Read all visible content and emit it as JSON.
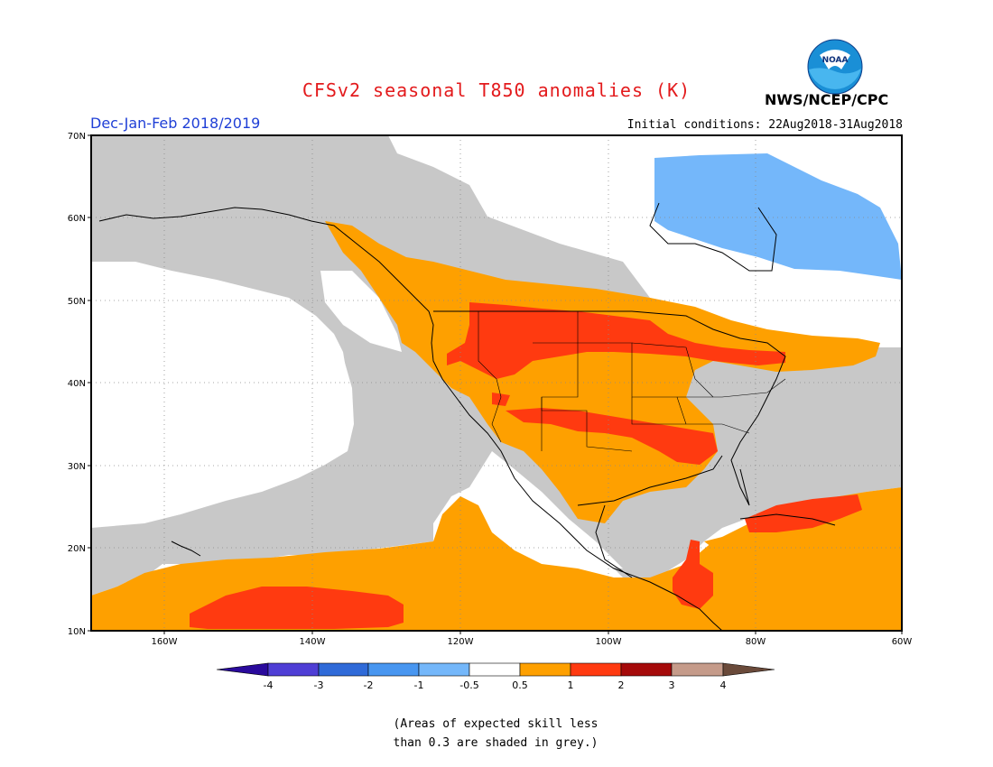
{
  "header": {
    "title": "CFSv2 seasonal T850 anomalies (K)",
    "season": "Dec-Jan-Feb 2018/2019",
    "initial_conditions": "Initial conditions: 22Aug2018-31Aug2018",
    "agency": "NWS/NCEP/CPC",
    "logo_text": "NOAA"
  },
  "map": {
    "lat_labels": [
      "10N",
      "20N",
      "30N",
      "40N",
      "50N",
      "60N",
      "70N"
    ],
    "lon_labels": [
      "160W",
      "140W",
      "120W",
      "100W",
      "80W",
      "60W"
    ],
    "region": "North America",
    "regions": [
      {
        "area": "Eastern Canada / Labrador",
        "category": "-1 to -0.5",
        "color": "#74b7fa"
      },
      {
        "area": "Northern US Plains / Montana",
        "category": "1 to 2",
        "color": "#ff3a10"
      },
      {
        "area": "Southern Plains / Oklahoma-Arkansas",
        "category": "1 to 2",
        "color": "#ff3a10"
      },
      {
        "area": "Central Pacific south of Hawaii",
        "category": "1 to 2",
        "color": "#ff3a10"
      },
      {
        "area": "Cuba / Caribbean",
        "category": "1 to 2",
        "color": "#ff3a10"
      },
      {
        "area": "Guatemala / Honduras",
        "category": "1 to 2",
        "color": "#ff3a10"
      },
      {
        "area": "Pacific Northwest / northern tier / southern US / tropical oceans",
        "category": "0.5 to 1",
        "color": "#fea000"
      },
      {
        "area": "Mexico / NE Pacific / Arctic",
        "category": "-0.5 to 0.5",
        "color": "#ffffff"
      },
      {
        "area": "Alaska / central US / western Atlantic / NE Pacific",
        "category": "low skill",
        "color": "#c8c8c8"
      }
    ]
  },
  "colorbar": {
    "labels": [
      "-4",
      "-3",
      "-2",
      "-1",
      "-0.5",
      "0.5",
      "1",
      "2",
      "3",
      "4"
    ],
    "colors": [
      "#2a0a9c",
      "#4f3ed5",
      "#2f6ad8",
      "#4896f0",
      "#74b7fa",
      "#ffffff",
      "#fea000",
      "#ff3a10",
      "#a50a0a",
      "#c59b8a",
      "#6a4a3a"
    ]
  },
  "note": {
    "line1": "(Areas of expected skill less",
    "line2": "than 0.3 are shaded in grey.)"
  }
}
